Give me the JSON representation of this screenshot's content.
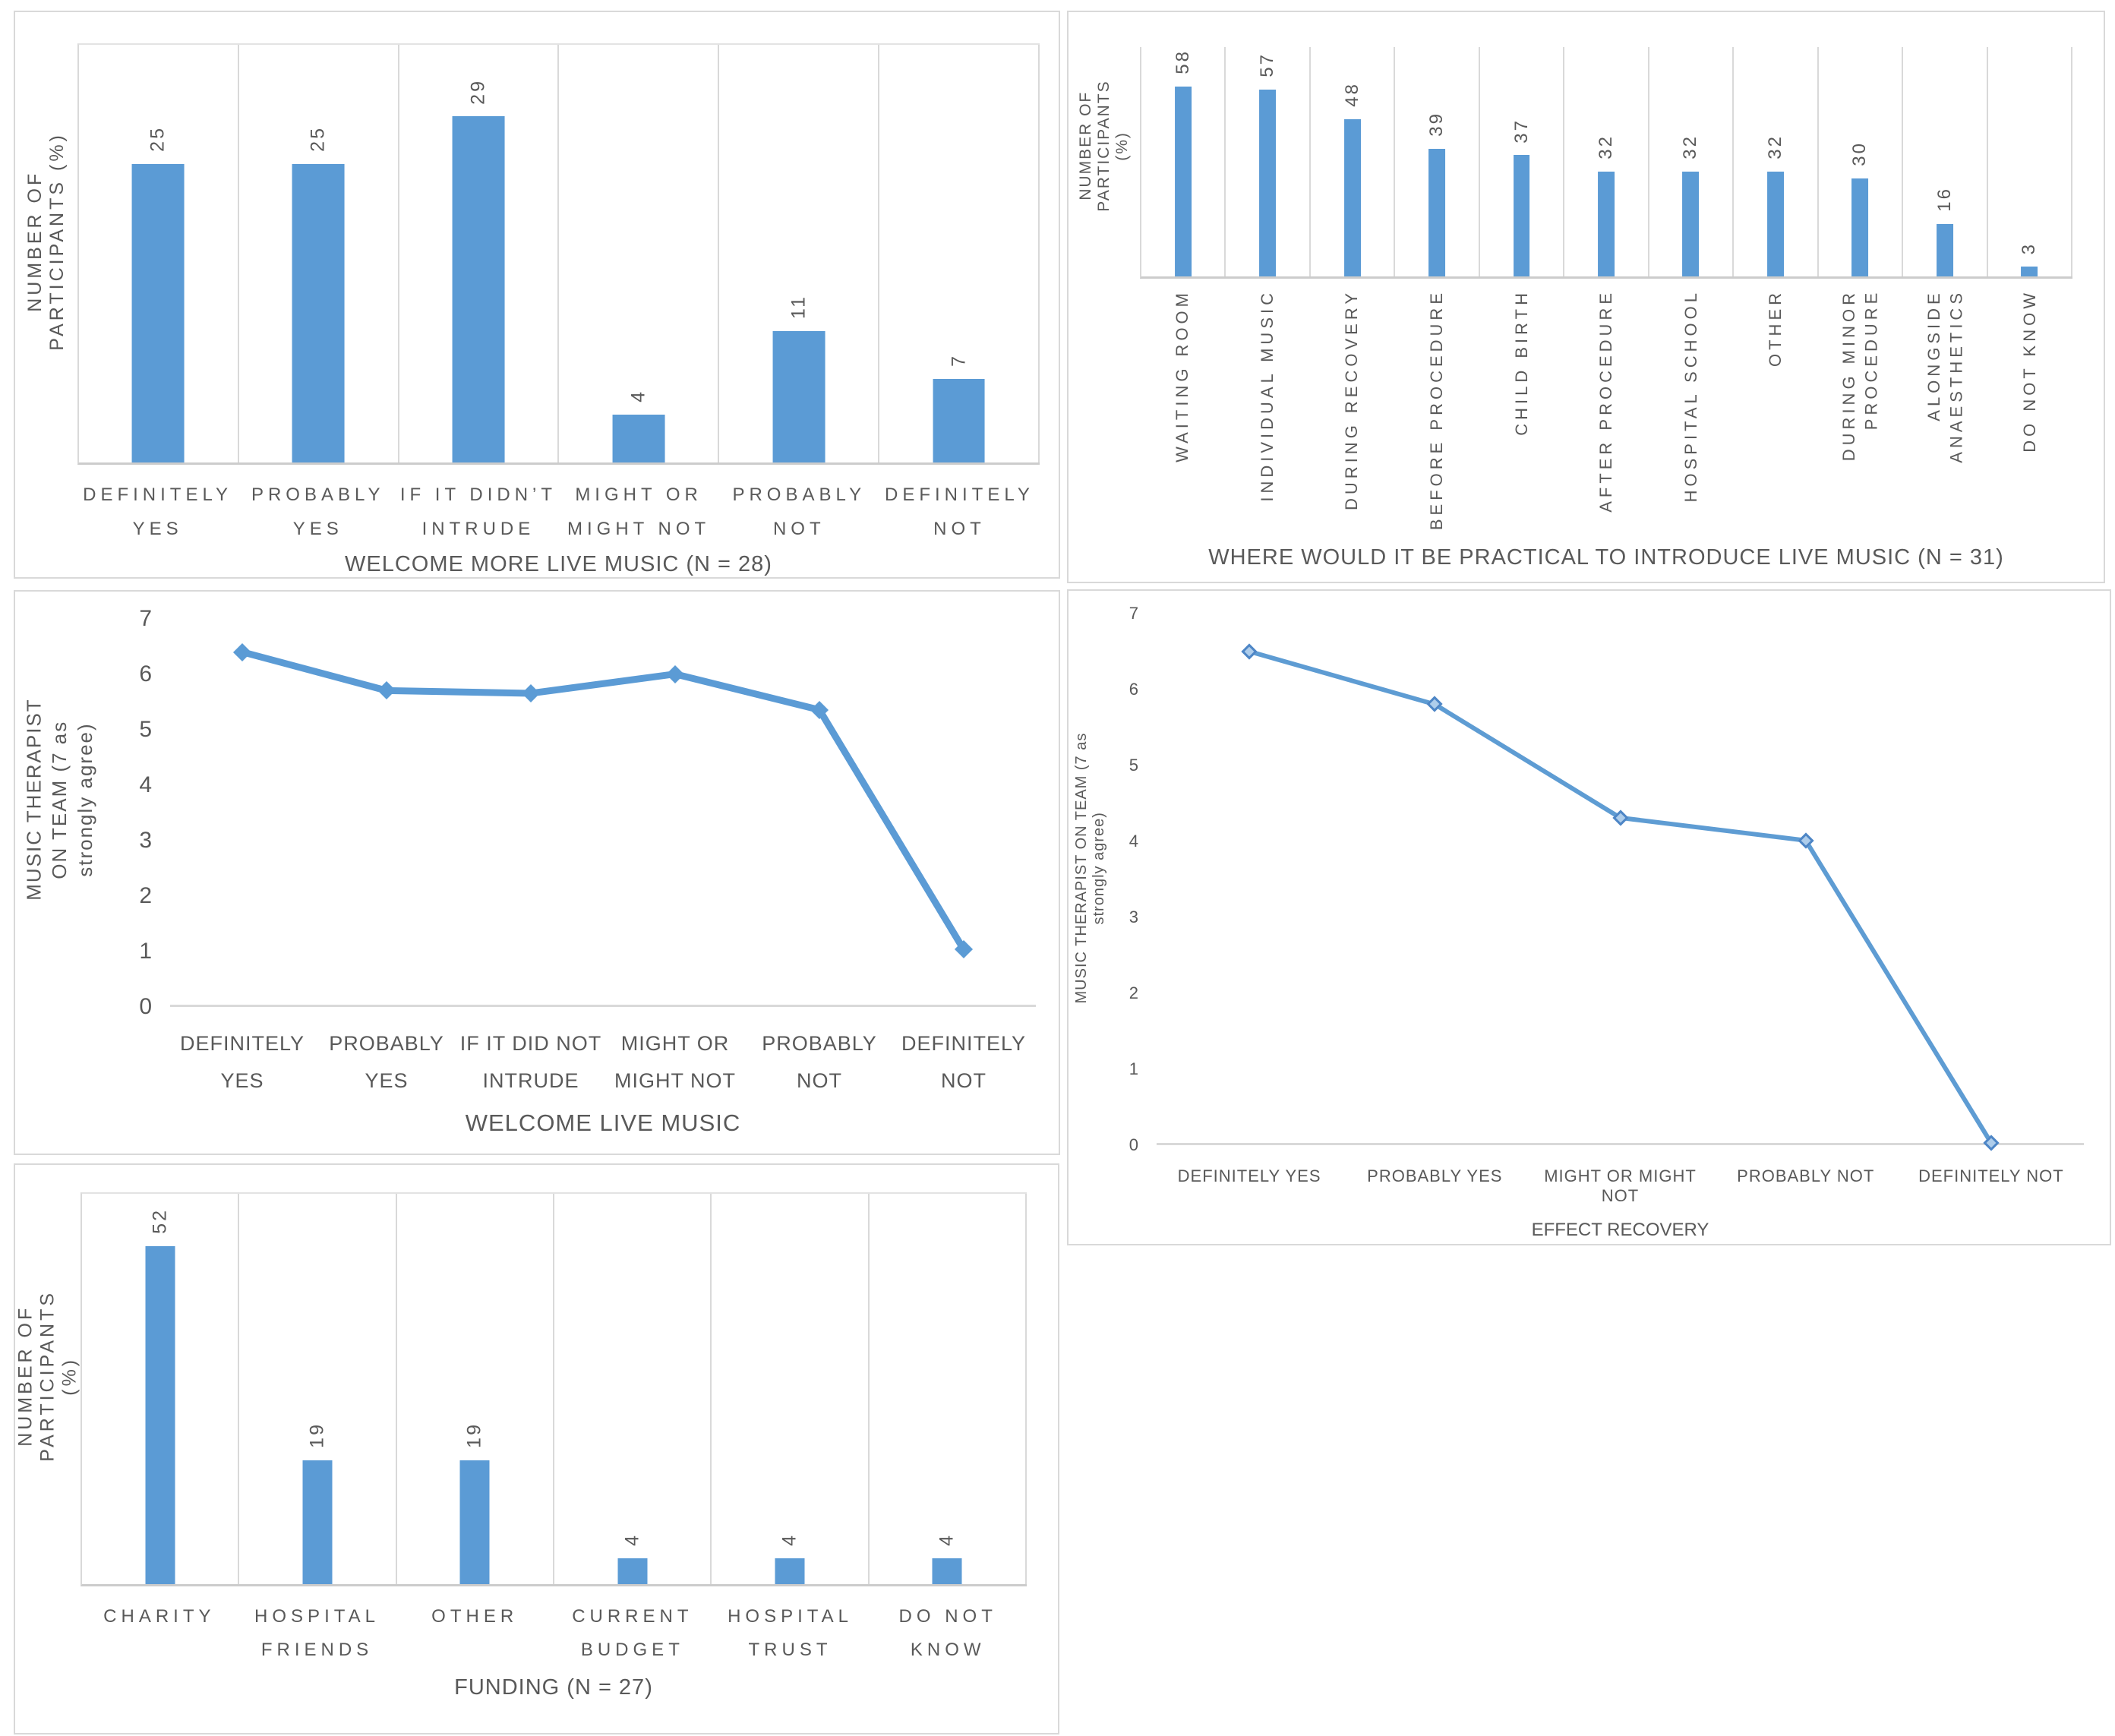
{
  "figure": {
    "text_color": "#595959",
    "grid_color": "#d9d9d9",
    "bar_color": "#5b9bd5"
  },
  "chart_data": [
    {
      "id": "welcome-more-live-music",
      "type": "bar",
      "title": "WELCOME MORE LIVE MUSIC (N = 28)",
      "ylabel": "NUMBER OF PARTICIPANTS (%)",
      "categories": [
        "DEFINITELY\nYES",
        "PROBABLY\nYES",
        "IF IT DIDN’T\nINTRUDE",
        "MIGHT OR\nMIGHT NOT",
        "PROBABLY\nNOT",
        "DEFINITELY\nNOT"
      ],
      "values": [
        25,
        25,
        29,
        4,
        11,
        7
      ],
      "ylim": [
        0,
        35
      ],
      "grid": "vertical-category-lines",
      "bar_color": "#5b9bd5",
      "data_labels": "rotated-above-bar"
    },
    {
      "id": "where-practical-to-introduce-live-music",
      "type": "bar",
      "title": "WHERE WOULD IT BE PRACTICAL TO INTRODUCE LIVE MUSIC (N = 31)",
      "ylabel": "NUMBER OF PARTICIPANTS (%)",
      "categories": [
        "WAITING ROOM",
        "INDIVIDUAL MUSIC",
        "DURING RECOVERY",
        "BEFORE PROCEDURE",
        "CHILD BIRTH",
        "AFTER PROCEDURE",
        "HOSPITAL SCHOOL",
        "OTHER",
        "DURING MINOR\nPROCEDURE",
        "ALONGSIDE\nANAESTHETICS",
        "DO NOT KNOW"
      ],
      "values": [
        58,
        57,
        48,
        39,
        37,
        32,
        32,
        32,
        30,
        16,
        3
      ],
      "ylim": [
        0,
        70
      ],
      "grid": "vertical-category-lines",
      "bar_color": "#5b9bd5",
      "x_labels_vertical": true,
      "data_labels": "rotated-above-bar"
    },
    {
      "id": "welcome-live-music-line",
      "type": "line",
      "title": "WELCOME LIVE MUSIC",
      "ylabel": "MUSIC THERAPIST ON TEAM (7 as\nstrongly agree)",
      "categories": [
        "DEFINITELY\nYES",
        "PROBABLY\nYES",
        "IF IT DID NOT\nINTRUDE",
        "MIGHT OR\nMIGHT NOT",
        "PROBABLY\nNOT",
        "DEFINITELY\nNOT"
      ],
      "values": [
        6.4,
        5.7,
        5.65,
        6,
        5.35,
        1
      ],
      "ylim": [
        0,
        7
      ],
      "yticks": [
        0,
        1,
        2,
        3,
        4,
        5,
        6,
        7
      ],
      "line_color": "#5b9bd5",
      "line_width": 9,
      "marker": "diamond",
      "marker_fill": "#5b9bd5",
      "marker_stroke": "#5b9bd5",
      "marker_size": 17,
      "grid": "none"
    },
    {
      "id": "effect-recovery-line",
      "type": "line",
      "title": "EFFECT RECOVERY",
      "ylabel": "MUSIC THERAPIST ON TEAM (7 as strongly agree)",
      "categories": [
        "DEFINITELY YES",
        "PROBABLY YES",
        "MIGHT OR MIGHT NOT",
        "PROBABLY NOT",
        "DEFINITELY NOT"
      ],
      "values": [
        6.5,
        5.8,
        4.3,
        4,
        0
      ],
      "ylim": [
        0,
        7
      ],
      "yticks": [
        0,
        1,
        2,
        3,
        4,
        5,
        6,
        7
      ],
      "line_color": "#5e9cd3",
      "line_width": 6,
      "marker": "diamond",
      "marker_fill": "#aecdeb",
      "marker_stroke": "#4e86c6",
      "marker_size": 15,
      "grid": "none"
    },
    {
      "id": "funding",
      "type": "bar",
      "title": "FUNDING (N = 27)",
      "ylabel": "NUMBER OF PARTICIPANTS (%)",
      "categories": [
        "CHARITY",
        "HOSPITAL\nFRIENDS",
        "OTHER",
        "CURRENT\nBUDGET",
        "HOSPITAL\nTRUST",
        "DO NOT\nKNOW"
      ],
      "values": [
        52,
        19,
        19,
        4,
        4,
        4
      ],
      "ylim": [
        0,
        60
      ],
      "grid": "vertical-category-lines",
      "bar_color": "#5b9bd5",
      "data_labels": "rotated-above-bar"
    }
  ]
}
